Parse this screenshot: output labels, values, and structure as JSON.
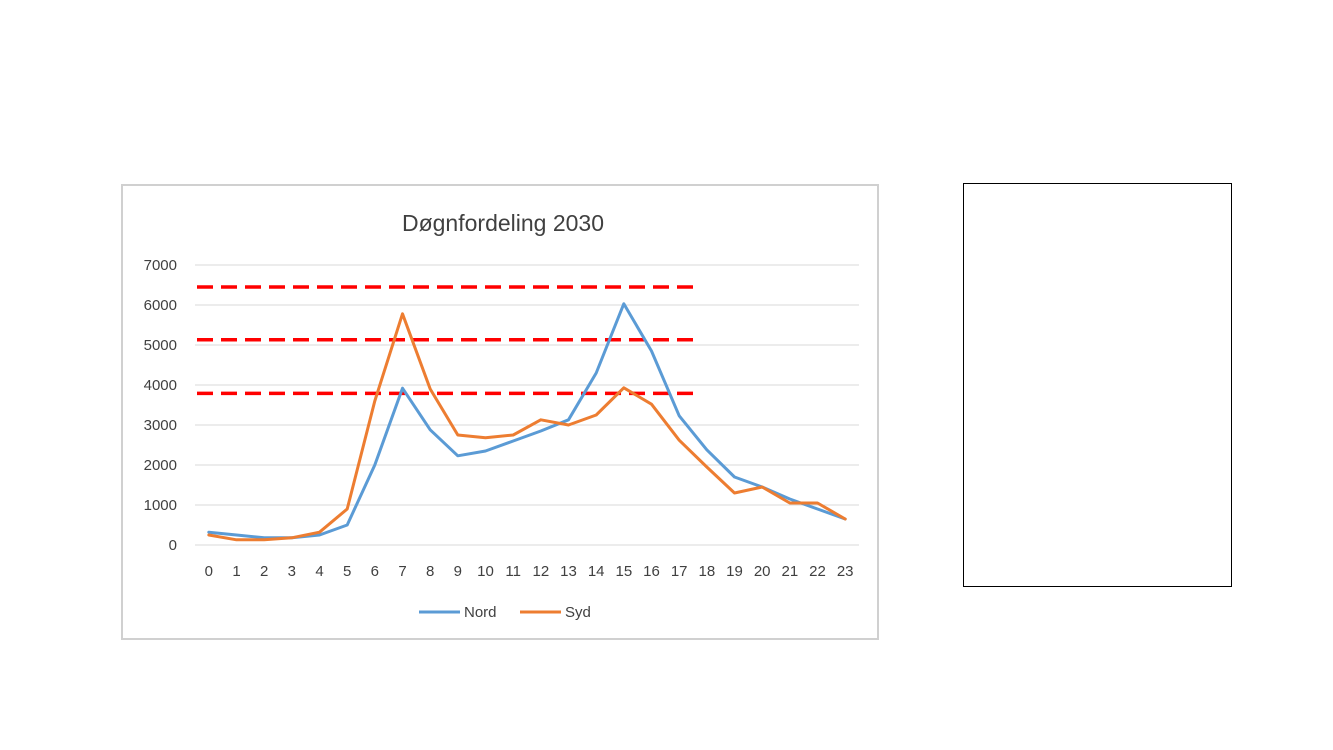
{
  "chart_data": {
    "type": "line",
    "title": "Døgnfordeling 2030",
    "categories": [
      "0",
      "1",
      "2",
      "3",
      "4",
      "5",
      "6",
      "7",
      "8",
      "9",
      "10",
      "11",
      "12",
      "13",
      "14",
      "15",
      "16",
      "17",
      "18",
      "19",
      "20",
      "21",
      "22",
      "23"
    ],
    "series": [
      {
        "name": "Nord",
        "color": "#5b9bd5",
        "values": [
          320,
          250,
          180,
          180,
          250,
          500,
          2000,
          3920,
          2880,
          2230,
          2350,
          2600,
          2850,
          3130,
          4300,
          6030,
          4850,
          3230,
          2380,
          1700,
          1450,
          1150,
          900,
          650
        ]
      },
      {
        "name": "Syd",
        "color": "#ed7d31",
        "values": [
          250,
          130,
          130,
          180,
          320,
          900,
          3600,
          5780,
          3900,
          2750,
          2680,
          2750,
          3130,
          3000,
          3250,
          3930,
          3520,
          2620,
          1950,
          1300,
          1450,
          1050,
          1050,
          650
        ]
      }
    ],
    "y_ticks": [
      "0",
      "1000",
      "2000",
      "3000",
      "4000",
      "5000",
      "6000",
      "7000"
    ],
    "ylim": [
      0,
      7000
    ],
    "grid": true,
    "legend_position": "bottom",
    "reference_lines": {
      "color": "#ff0000",
      "style": "dashed",
      "y": [
        6450,
        5130,
        3790
      ]
    }
  }
}
